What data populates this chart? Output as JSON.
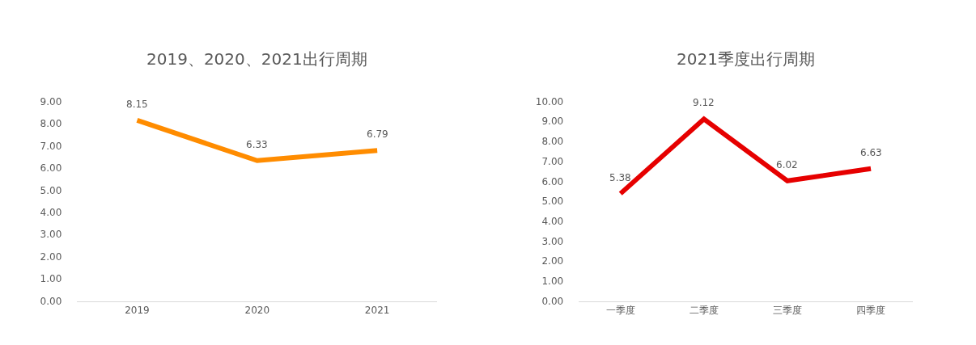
{
  "chart_data": [
    {
      "type": "line",
      "title": "2019、2020、2021出行周期",
      "categories": [
        "2019",
        "2020",
        "2021"
      ],
      "series": [
        {
          "color": "#ff8c00",
          "values": [
            8.15,
            6.33,
            6.79
          ]
        }
      ],
      "ylim": [
        0,
        9
      ],
      "yticks": [
        {
          "value": 0,
          "label": "0.00"
        },
        {
          "value": 1,
          "label": "1.00"
        },
        {
          "value": 2,
          "label": "2.00"
        },
        {
          "value": 3,
          "label": "3.00"
        },
        {
          "value": 4,
          "label": "4.00"
        },
        {
          "value": 5,
          "label": "5.00"
        },
        {
          "value": 6,
          "label": "6.00"
        },
        {
          "value": 7,
          "label": "7.00"
        },
        {
          "value": 8,
          "label": "8.00"
        },
        {
          "value": 9,
          "label": "9.00"
        }
      ],
      "data_labels": true,
      "grid": false,
      "marker": "none",
      "line_style": "solid"
    },
    {
      "type": "line",
      "title": "2021季度出行周期",
      "categories": [
        "一季度",
        "二季度",
        "三季度",
        "四季度"
      ],
      "series": [
        {
          "color": "#e60000",
          "values": [
            5.38,
            9.12,
            6.02,
            6.63
          ]
        }
      ],
      "ylim": [
        0,
        10
      ],
      "yticks": [
        {
          "value": 0,
          "label": "0.00"
        },
        {
          "value": 1,
          "label": "1.00"
        },
        {
          "value": 2,
          "label": "2.00"
        },
        {
          "value": 3,
          "label": "3.00"
        },
        {
          "value": 4,
          "label": "4.00"
        },
        {
          "value": 5,
          "label": "5.00"
        },
        {
          "value": 6,
          "label": "6.00"
        },
        {
          "value": 7,
          "label": "7.00"
        },
        {
          "value": 8,
          "label": "8.00"
        },
        {
          "value": 9,
          "label": "9.00"
        },
        {
          "value": 10,
          "label": "10.00"
        }
      ],
      "data_labels": true,
      "grid": false,
      "marker": "none",
      "line_style": "solid"
    }
  ]
}
